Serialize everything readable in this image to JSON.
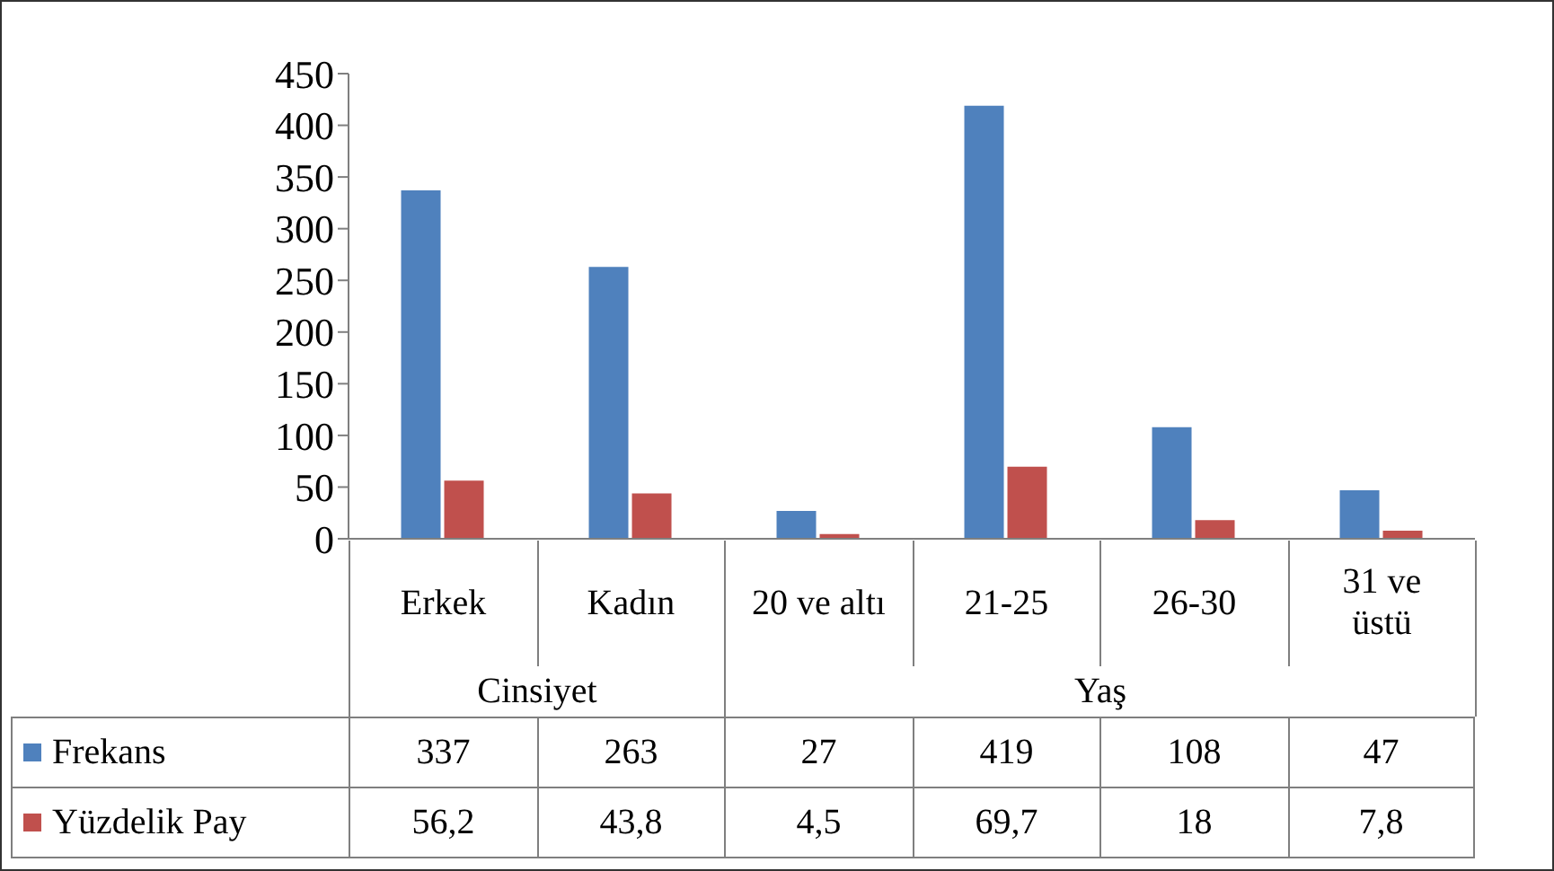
{
  "chart_data": {
    "type": "bar",
    "categories": [
      "Erkek",
      "Kadın",
      "20 ve altı",
      "21-25",
      "26-30",
      "31 ve üstü"
    ],
    "series": [
      {
        "name": "Frekans",
        "color": "#4f81bd",
        "values": [
          337,
          263,
          27,
          419,
          108,
          47
        ],
        "value_labels": [
          "337",
          "263",
          "27",
          "419",
          "108",
          "47"
        ]
      },
      {
        "name": "Yüzdelik Pay",
        "color": "#c0504d",
        "values": [
          56.2,
          43.8,
          4.5,
          69.7,
          18,
          7.8
        ],
        "value_labels": [
          "56,2",
          "43,8",
          "4,5",
          "69,7",
          "18",
          "7,8"
        ]
      }
    ],
    "annotations": [
      "Cinsiyet",
      "Yaş"
    ],
    "ylim": [
      0,
      450
    ],
    "yticks": [
      0,
      50,
      100,
      150,
      200,
      250,
      300,
      350,
      400,
      450
    ],
    "grid": false,
    "legend": "bottom left"
  }
}
